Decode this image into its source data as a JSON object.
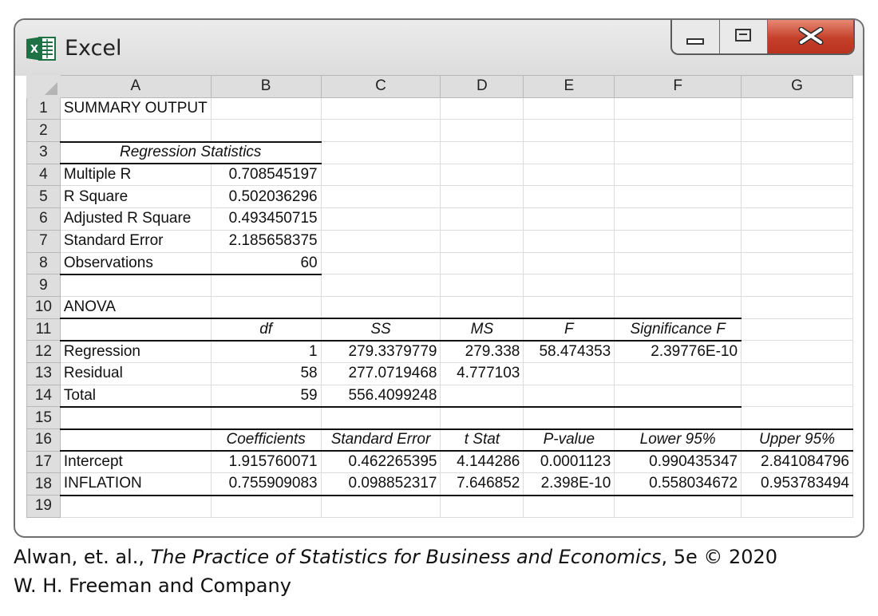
{
  "window": {
    "title": "Excel",
    "icon": "excel-icon",
    "accent_color": "#1e7145"
  },
  "columns": [
    "A",
    "B",
    "C",
    "D",
    "E",
    "F",
    "G"
  ],
  "rows": [
    {
      "num": "1",
      "cells": [
        "SUMMARY OUTPUT",
        "",
        "",
        "",
        "",
        "",
        ""
      ]
    },
    {
      "num": "2",
      "cells": [
        "",
        "",
        "",
        "",
        "",
        "",
        ""
      ]
    },
    {
      "num": "3",
      "cells": [
        "Regression Statistics",
        "",
        "",
        "",
        "",
        "",
        ""
      ]
    },
    {
      "num": "4",
      "cells": [
        "Multiple R",
        "0.708545197",
        "",
        "",
        "",
        "",
        ""
      ]
    },
    {
      "num": "5",
      "cells": [
        "R Square",
        "0.502036296",
        "",
        "",
        "",
        "",
        ""
      ]
    },
    {
      "num": "6",
      "cells": [
        "Adjusted R Square",
        "0.493450715",
        "",
        "",
        "",
        "",
        ""
      ]
    },
    {
      "num": "7",
      "cells": [
        "Standard Error",
        "2.185658375",
        "",
        "",
        "",
        "",
        ""
      ]
    },
    {
      "num": "8",
      "cells": [
        "Observations",
        "60",
        "",
        "",
        "",
        "",
        ""
      ]
    },
    {
      "num": "9",
      "cells": [
        "",
        "",
        "",
        "",
        "",
        "",
        ""
      ]
    },
    {
      "num": "10",
      "cells": [
        "ANOVA",
        "",
        "",
        "",
        "",
        "",
        ""
      ]
    },
    {
      "num": "11",
      "cells": [
        "",
        "df",
        "SS",
        "MS",
        "F",
        "Significance F",
        ""
      ]
    },
    {
      "num": "12",
      "cells": [
        "Regression",
        "1",
        "279.3379779",
        "279.338",
        "58.474353",
        "2.39776E-10",
        ""
      ]
    },
    {
      "num": "13",
      "cells": [
        "Residual",
        "58",
        "277.0719468",
        "4.777103",
        "",
        "",
        ""
      ]
    },
    {
      "num": "14",
      "cells": [
        "Total",
        "59",
        "556.4099248",
        "",
        "",
        "",
        ""
      ]
    },
    {
      "num": "15",
      "cells": [
        "",
        "",
        "",
        "",
        "",
        "",
        ""
      ]
    },
    {
      "num": "16",
      "cells": [
        "",
        "Coefficients",
        "Standard Error",
        "t Stat",
        "P-value",
        "Lower 95%",
        "Upper 95%"
      ]
    },
    {
      "num": "17",
      "cells": [
        "Intercept",
        "1.915760071",
        "0.462265395",
        "4.144286",
        "0.0001123",
        "0.990435347",
        "2.841084796"
      ]
    },
    {
      "num": "18",
      "cells": [
        "INFLATION",
        "0.755909083",
        "0.098852317",
        "7.646852",
        "2.398E-10",
        "0.558034672",
        "0.953783494"
      ]
    },
    {
      "num": "19",
      "cells": [
        "",
        "",
        "",
        "",
        "",
        "",
        ""
      ]
    }
  ],
  "caption": {
    "prefix": "Alwan, et. al., ",
    "book": "The Practice of Statistics for Business and Economics",
    "suffix": ", 5e © 2020",
    "line2": "W. H. Freeman and Company"
  }
}
